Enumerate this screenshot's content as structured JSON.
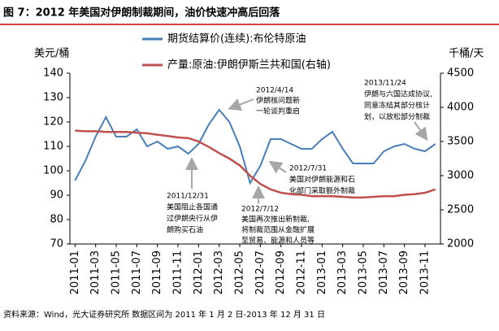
{
  "chart_data": {
    "type": "line",
    "title": "图 7：2012 年美国对伊朗制裁期间，油价快速冲高后回落",
    "ylabel": "美元/桶",
    "y2label": "千桶/天",
    "source": "资料来源：Wind，光大证券研究所  数据区间为 2011 年 1 月 2 日-2013 年 12 月 31 日",
    "x": [
      "2011-01",
      "2011-02",
      "2011-03",
      "2011-04",
      "2011-05",
      "2011-06",
      "2011-07",
      "2011-08",
      "2011-09",
      "2011-10",
      "2011-11",
      "2011-12",
      "2012-01",
      "2012-02",
      "2012-03",
      "2012-04",
      "2012-05",
      "2012-06",
      "2012-07",
      "2012-08",
      "2012-09",
      "2012-10",
      "2012-11",
      "2012-12",
      "2013-01",
      "2013-02",
      "2013-03",
      "2013-04",
      "2013-05",
      "2013-06",
      "2013-07",
      "2013-08",
      "2013-09",
      "2013-10",
      "2013-11",
      "2013-12"
    ],
    "xticks": [
      "2011-01",
      "2011-03",
      "2011-05",
      "2011-07",
      "2011-09",
      "2011-11",
      "2012-01",
      "2012-03",
      "2012-05",
      "2012-07",
      "2012-09",
      "2012-11",
      "2013-01",
      "2013-03",
      "2013-05",
      "2013-07",
      "2013-09",
      "2013-11"
    ],
    "ylim": [
      70,
      140
    ],
    "yticks": [
      70,
      80,
      90,
      100,
      110,
      120,
      130,
      140
    ],
    "y2lim": [
      2000,
      4500
    ],
    "y2ticks": [
      2000,
      2500,
      3000,
      3500,
      4000,
      4500
    ],
    "series": [
      {
        "name": "期货结算价(连续):布伦特原油",
        "color": "#4a7ebb",
        "values": [
          96,
          104,
          114,
          122,
          114,
          114,
          117,
          110,
          112,
          109,
          110,
          107,
          111,
          119,
          125,
          120,
          110,
          95,
          102,
          113,
          113,
          111,
          109,
          109,
          113,
          116,
          109,
          103,
          103,
          103,
          108,
          110,
          111,
          109,
          108,
          111
        ]
      },
      {
        "name": "产量:原油:伊朗伊斯兰共和国(右轴)",
        "color": "#c0504d",
        "axis": "y2",
        "values": [
          3660,
          3650,
          3650,
          3640,
          3640,
          3640,
          3630,
          3620,
          3600,
          3580,
          3560,
          3550,
          3500,
          3420,
          3330,
          3250,
          3150,
          3000,
          2880,
          2800,
          2750,
          2730,
          2720,
          2700,
          2700,
          2700,
          2690,
          2680,
          2680,
          2690,
          2700,
          2700,
          2720,
          2730,
          2750,
          2800
        ]
      }
    ],
    "annotations": [
      {
        "lines": [
          "2012/4/14",
          "伊朗核问题新",
          "一轮谈判重启"
        ]
      },
      {
        "lines": [
          "2011/12/31",
          "美国阻止各国通",
          "过伊朗央行从伊",
          "朗购买石油"
        ]
      },
      {
        "lines": [
          "2012/7/31",
          "美国对伊朗能源和石",
          "化部门采取额外制裁"
        ]
      },
      {
        "lines": [
          "2012/7/12",
          "美国再次推出新制裁,",
          "将制裁范围从金融扩展",
          "至贸易、能源和人员等"
        ]
      },
      {
        "lines": [
          "2013/11/24",
          "伊朗与六国达成协议,",
          "同意冻结其部分核计",
          "划，以放松部分制裁"
        ]
      }
    ]
  }
}
